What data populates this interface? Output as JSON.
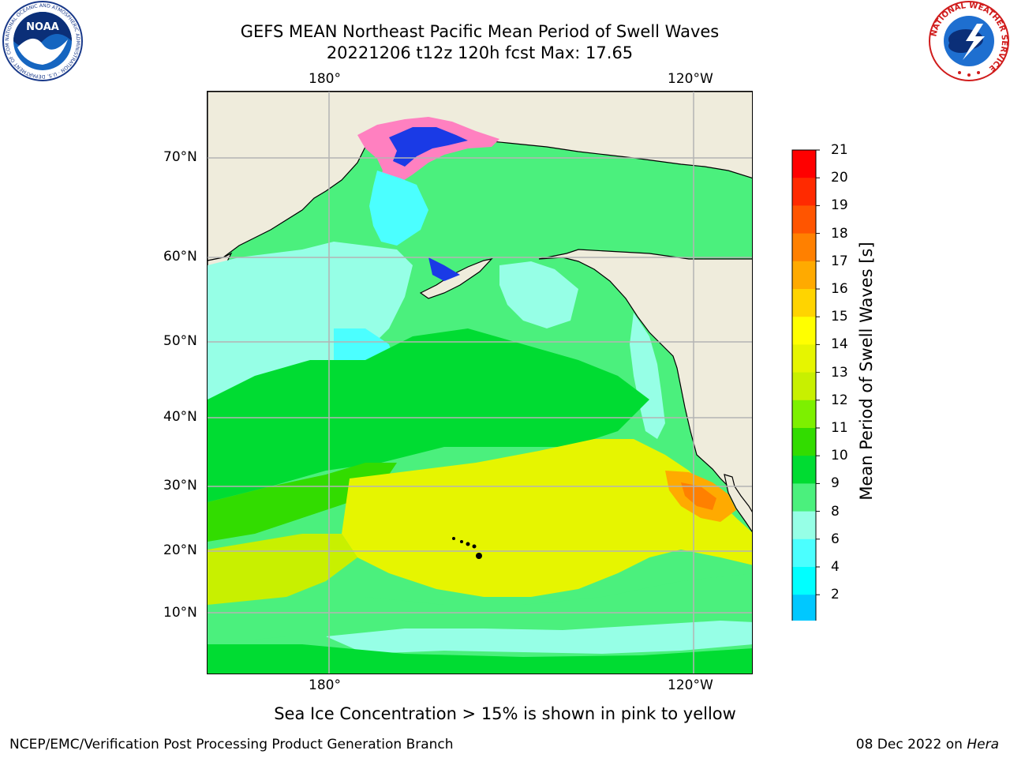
{
  "title": {
    "line1": "GEFS MEAN Northeast Pacific Mean Period of Swell Waves",
    "line2": "20221206 t12z 120h fcst   Max: 17.65"
  },
  "axes": {
    "top_lon_ticks": [
      "180°",
      "120°W"
    ],
    "bottom_lon_ticks": [
      "180°",
      "120°W"
    ],
    "lat_ticks": [
      "70°N",
      "60°N",
      "50°N",
      "40°N",
      "30°N",
      "20°N",
      "10°N"
    ]
  },
  "map": {
    "region": "Northeast Pacific",
    "projection": "polar stereographic",
    "land_color": "#efecdc",
    "grid_color": "#b4b4b4"
  },
  "colorbar": {
    "title": "Mean Period of Swell Waves [s]",
    "levels": [
      "21",
      "20",
      "19",
      "18",
      "17",
      "16",
      "15",
      "14",
      "13",
      "12",
      "11",
      "10",
      "9",
      "8",
      "6",
      "4",
      "2"
    ],
    "colors_top_to_bottom": [
      "#ff0000",
      "#ff2a00",
      "#ff5500",
      "#ff8000",
      "#ffaa00",
      "#ffd400",
      "#ffff00",
      "#e6f500",
      "#c8f000",
      "#7df000",
      "#32dc00",
      "#00dc32",
      "#4bf07d",
      "#96ffe6",
      "#4bffff",
      "#00ffff",
      "#00c8ff",
      "#0064ff"
    ],
    "extend_color": "#0000e6"
  },
  "footnote": "Sea Ice Concentration > 15% is shown in pink to yellow",
  "credits": {
    "left": "NCEP/EMC/Verification Post Processing Product Generation Branch",
    "right_prefix": "08 Dec 2022 on ",
    "right_host": "Hera"
  },
  "logos": {
    "noaa": {
      "label": "NOAA",
      "ring_text": "NATIONAL OCEANIC AND ATMOSPHERIC ADMINISTRATION · U.S. DEPARTMENT OF COMMERCE"
    },
    "nws": {
      "ring_text": "NATIONAL WEATHER SERVICE"
    }
  }
}
